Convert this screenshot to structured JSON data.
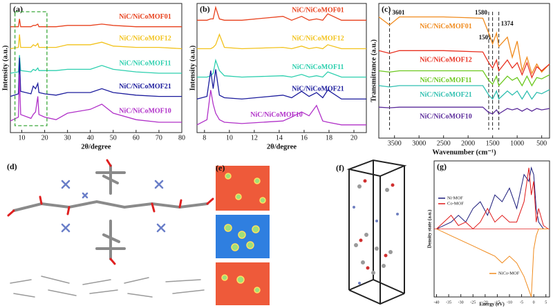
{
  "chart_data": [
    {
      "type": "line",
      "panel": "(a)",
      "xlabel": "2θ/degree",
      "ylabel": "Intensity (a.u.)",
      "xlim": [
        5,
        80
      ],
      "ylim": [
        0,
        10
      ],
      "xticks": [
        10,
        20,
        30,
        40,
        50,
        60,
        70,
        80
      ],
      "x": [
        5,
        8.5,
        9,
        9.5,
        14,
        15,
        16,
        17,
        17.5,
        20,
        25,
        30,
        40,
        45,
        50,
        60,
        70,
        80
      ],
      "series": [
        {
          "name": "NiC/NiCoMOF01",
          "color": "#e8401c",
          "values": [
            8.2,
            8.2,
            8.8,
            8.2,
            8.2,
            8.3,
            8.3,
            8.4,
            8.2,
            8.2,
            8.2,
            8.3,
            8.3,
            8.4,
            8.3,
            8.2,
            8.2,
            8.2
          ]
        },
        {
          "name": "NiC/NiCoMOF12",
          "color": "#f2c21a",
          "values": [
            6.5,
            6.6,
            7.6,
            6.6,
            6.6,
            6.8,
            6.7,
            6.9,
            6.6,
            6.6,
            6.6,
            6.8,
            6.8,
            7.0,
            6.7,
            6.6,
            6.6,
            6.5
          ]
        },
        {
          "name": "NiC/NiCoMOF11",
          "color": "#2ccfae",
          "values": [
            4.6,
            4.7,
            6.0,
            4.8,
            4.7,
            4.9,
            4.8,
            5.0,
            4.8,
            4.8,
            4.8,
            4.9,
            4.9,
            5.2,
            4.9,
            4.7,
            4.6,
            4.6
          ]
        },
        {
          "name": "NiC/NiCoMOF21",
          "color": "#1a1a9c",
          "values": [
            2.8,
            3.0,
            5.8,
            3.2,
            3.0,
            3.6,
            3.4,
            3.8,
            3.1,
            3.0,
            2.9,
            3.1,
            3.1,
            3.4,
            3.1,
            2.9,
            2.8,
            2.8
          ]
        },
        {
          "name": "NiC/NiCoMOF10",
          "color": "#b030c8",
          "values": [
            0.9,
            1.2,
            4.5,
            1.4,
            1.1,
            1.4,
            1.6,
            2.8,
            1.4,
            1.2,
            1.0,
            1.5,
            1.8,
            2.2,
            1.5,
            1.0,
            0.8,
            0.8
          ]
        }
      ]
    },
    {
      "type": "line",
      "panel": "(b)",
      "xlabel": "2θ/degree",
      "ylabel": "Intensity (a.u.)",
      "xlim": [
        7.4,
        21
      ],
      "ylim": [
        0,
        10
      ],
      "xticks": [
        8,
        10,
        12,
        14,
        16,
        18,
        20
      ],
      "x": [
        7.4,
        8.2,
        8.5,
        8.7,
        8.9,
        9.2,
        9.6,
        11,
        14.3,
        15,
        15.8,
        16.4,
        17,
        17.5,
        17.9,
        19,
        21
      ],
      "series": [
        {
          "name": "NiC/NiCoMOF01",
          "color": "#e8401c",
          "values": [
            8.7,
            8.7,
            8.8,
            8.8,
            9.7,
            8.8,
            8.7,
            8.7,
            9.0,
            8.7,
            9.0,
            8.7,
            8.8,
            8.7,
            9.2,
            8.7,
            8.7
          ]
        },
        {
          "name": "NiC/NiCoMOF12",
          "color": "#f2c21a",
          "values": [
            6.5,
            6.5,
            6.5,
            6.6,
            6.8,
            7.6,
            6.6,
            6.5,
            6.6,
            6.5,
            6.7,
            6.5,
            6.6,
            6.5,
            6.8,
            6.5,
            6.5
          ]
        },
        {
          "name": "NiC/NiCoMOF11",
          "color": "#2ccfae",
          "values": [
            4.3,
            4.3,
            4.4,
            4.6,
            5.6,
            4.8,
            4.4,
            4.3,
            4.4,
            4.3,
            4.5,
            4.3,
            4.4,
            4.3,
            4.7,
            4.3,
            4.3
          ]
        },
        {
          "name": "NiC/NiCoMOF21",
          "color": "#1a1a9c",
          "values": [
            2.6,
            2.8,
            4.8,
            3.4,
            4.9,
            2.9,
            2.7,
            2.6,
            2.9,
            2.7,
            3.2,
            2.8,
            3.1,
            2.7,
            3.3,
            2.6,
            2.6
          ]
        },
        {
          "name": "NiC/NiCoMOF10",
          "color": "#b030c8",
          "values": [
            0.6,
            1.0,
            3.3,
            2.2,
            1.5,
            1.0,
            0.8,
            0.7,
            0.9,
            1.2,
            1.6,
            1.3,
            2.1,
            0.9,
            0.8,
            0.6,
            0.6
          ]
        }
      ]
    },
    {
      "type": "line",
      "panel": "(c)",
      "xlabel": "Wavenumber (cm⁻¹)",
      "ylabel": "Transmittance (a.u.)",
      "xlim": [
        3820,
        340
      ],
      "ylim": [
        0,
        10
      ],
      "xticks": [
        3500,
        3000,
        2500,
        2000,
        1500,
        1000,
        500
      ],
      "markers": [
        3601,
        1580,
        1501,
        1374
      ],
      "x": [
        3820,
        3601,
        3400,
        2500,
        1700,
        1580,
        1501,
        1420,
        1374,
        1200,
        1100,
        1000,
        900,
        800,
        700,
        600,
        500,
        340
      ],
      "series": [
        {
          "name": "NiC/NiCoMOF01",
          "color": "#f08a1c",
          "values": [
            9.0,
            8.4,
            9.0,
            9.0,
            8.9,
            7.8,
            7.0,
            7.8,
            6.8,
            7.5,
            6.0,
            7.2,
            5.0,
            6.0,
            4.8,
            5.5,
            4.9,
            5.5
          ]
        },
        {
          "name": "NiC/NiCoMOF12",
          "color": "#e83020",
          "values": [
            6.5,
            6.3,
            6.5,
            6.5,
            6.4,
            5.6,
            5.2,
            5.8,
            5.0,
            5.8,
            5.2,
            5.6,
            4.7,
            5.6,
            4.5,
            5.3,
            5.0,
            5.5
          ]
        },
        {
          "name": "NiC/NiCoMOF11",
          "color": "#6cc81e",
          "values": [
            5.0,
            4.9,
            5.0,
            5.0,
            5.0,
            4.3,
            4.0,
            4.6,
            3.9,
            4.6,
            4.3,
            4.5,
            3.9,
            4.6,
            3.9,
            4.5,
            4.4,
            4.7
          ]
        },
        {
          "name": "NiC/NiCoMOF21",
          "color": "#2fbfb0",
          "values": [
            3.9,
            3.8,
            3.9,
            3.9,
            3.9,
            3.2,
            2.9,
            3.5,
            2.9,
            3.5,
            3.2,
            3.5,
            2.9,
            3.5,
            2.9,
            3.4,
            3.3,
            3.6
          ]
        },
        {
          "name": "NiC/NiCoMOF10",
          "color": "#5a2a9a",
          "values": [
            2.3,
            2.25,
            2.3,
            2.3,
            2.3,
            1.9,
            1.8,
            2.1,
            1.8,
            2.2,
            2.1,
            2.2,
            2.0,
            2.2,
            2.0,
            2.2,
            2.1,
            2.2
          ]
        }
      ]
    },
    {
      "type": "dos",
      "panel": "(g)",
      "xlabel": "Energy (eV)",
      "ylabel": "Density state (a.u.)",
      "xlim": [
        -41,
        6.5
      ],
      "ylim": [
        -10,
        10
      ],
      "xticks": [
        -40,
        -35,
        -30,
        -25,
        -20,
        -15,
        -10,
        -5,
        0,
        5
      ],
      "x": [
        -40,
        -37,
        -34,
        -31,
        -28,
        -25,
        -22,
        -19,
        -16,
        -13,
        -10,
        -7,
        -4,
        -2,
        -1,
        0,
        1,
        2,
        4,
        6
      ],
      "series": [
        {
          "name": "Ni-MOF",
          "color": "#1a1a7a",
          "values": [
            0,
            0.5,
            1,
            2,
            1,
            3,
            4,
            2,
            5,
            4,
            6,
            3,
            8,
            7,
            9,
            8,
            3,
            1,
            0,
            0
          ]
        },
        {
          "name": "Co-MOF",
          "color": "#e01818",
          "values": [
            0,
            1,
            2,
            0.5,
            1,
            0,
            1,
            3,
            1,
            2,
            1,
            1,
            4,
            9,
            5,
            7,
            1,
            3,
            0.5,
            0
          ]
        },
        {
          "name": "NiCo-MOF",
          "color": "#f08a1c",
          "values": [
            0,
            -0.5,
            -1,
            -1.5,
            -2,
            -2.5,
            -3,
            -3.5,
            -4,
            -5,
            -4,
            -5,
            -7,
            -9,
            -10,
            -3,
            -1,
            0,
            0,
            0
          ]
        }
      ]
    }
  ],
  "images": [
    {
      "panel": "(d)"
    },
    {
      "panel": "(e)"
    },
    {
      "panel": "(f)"
    }
  ]
}
